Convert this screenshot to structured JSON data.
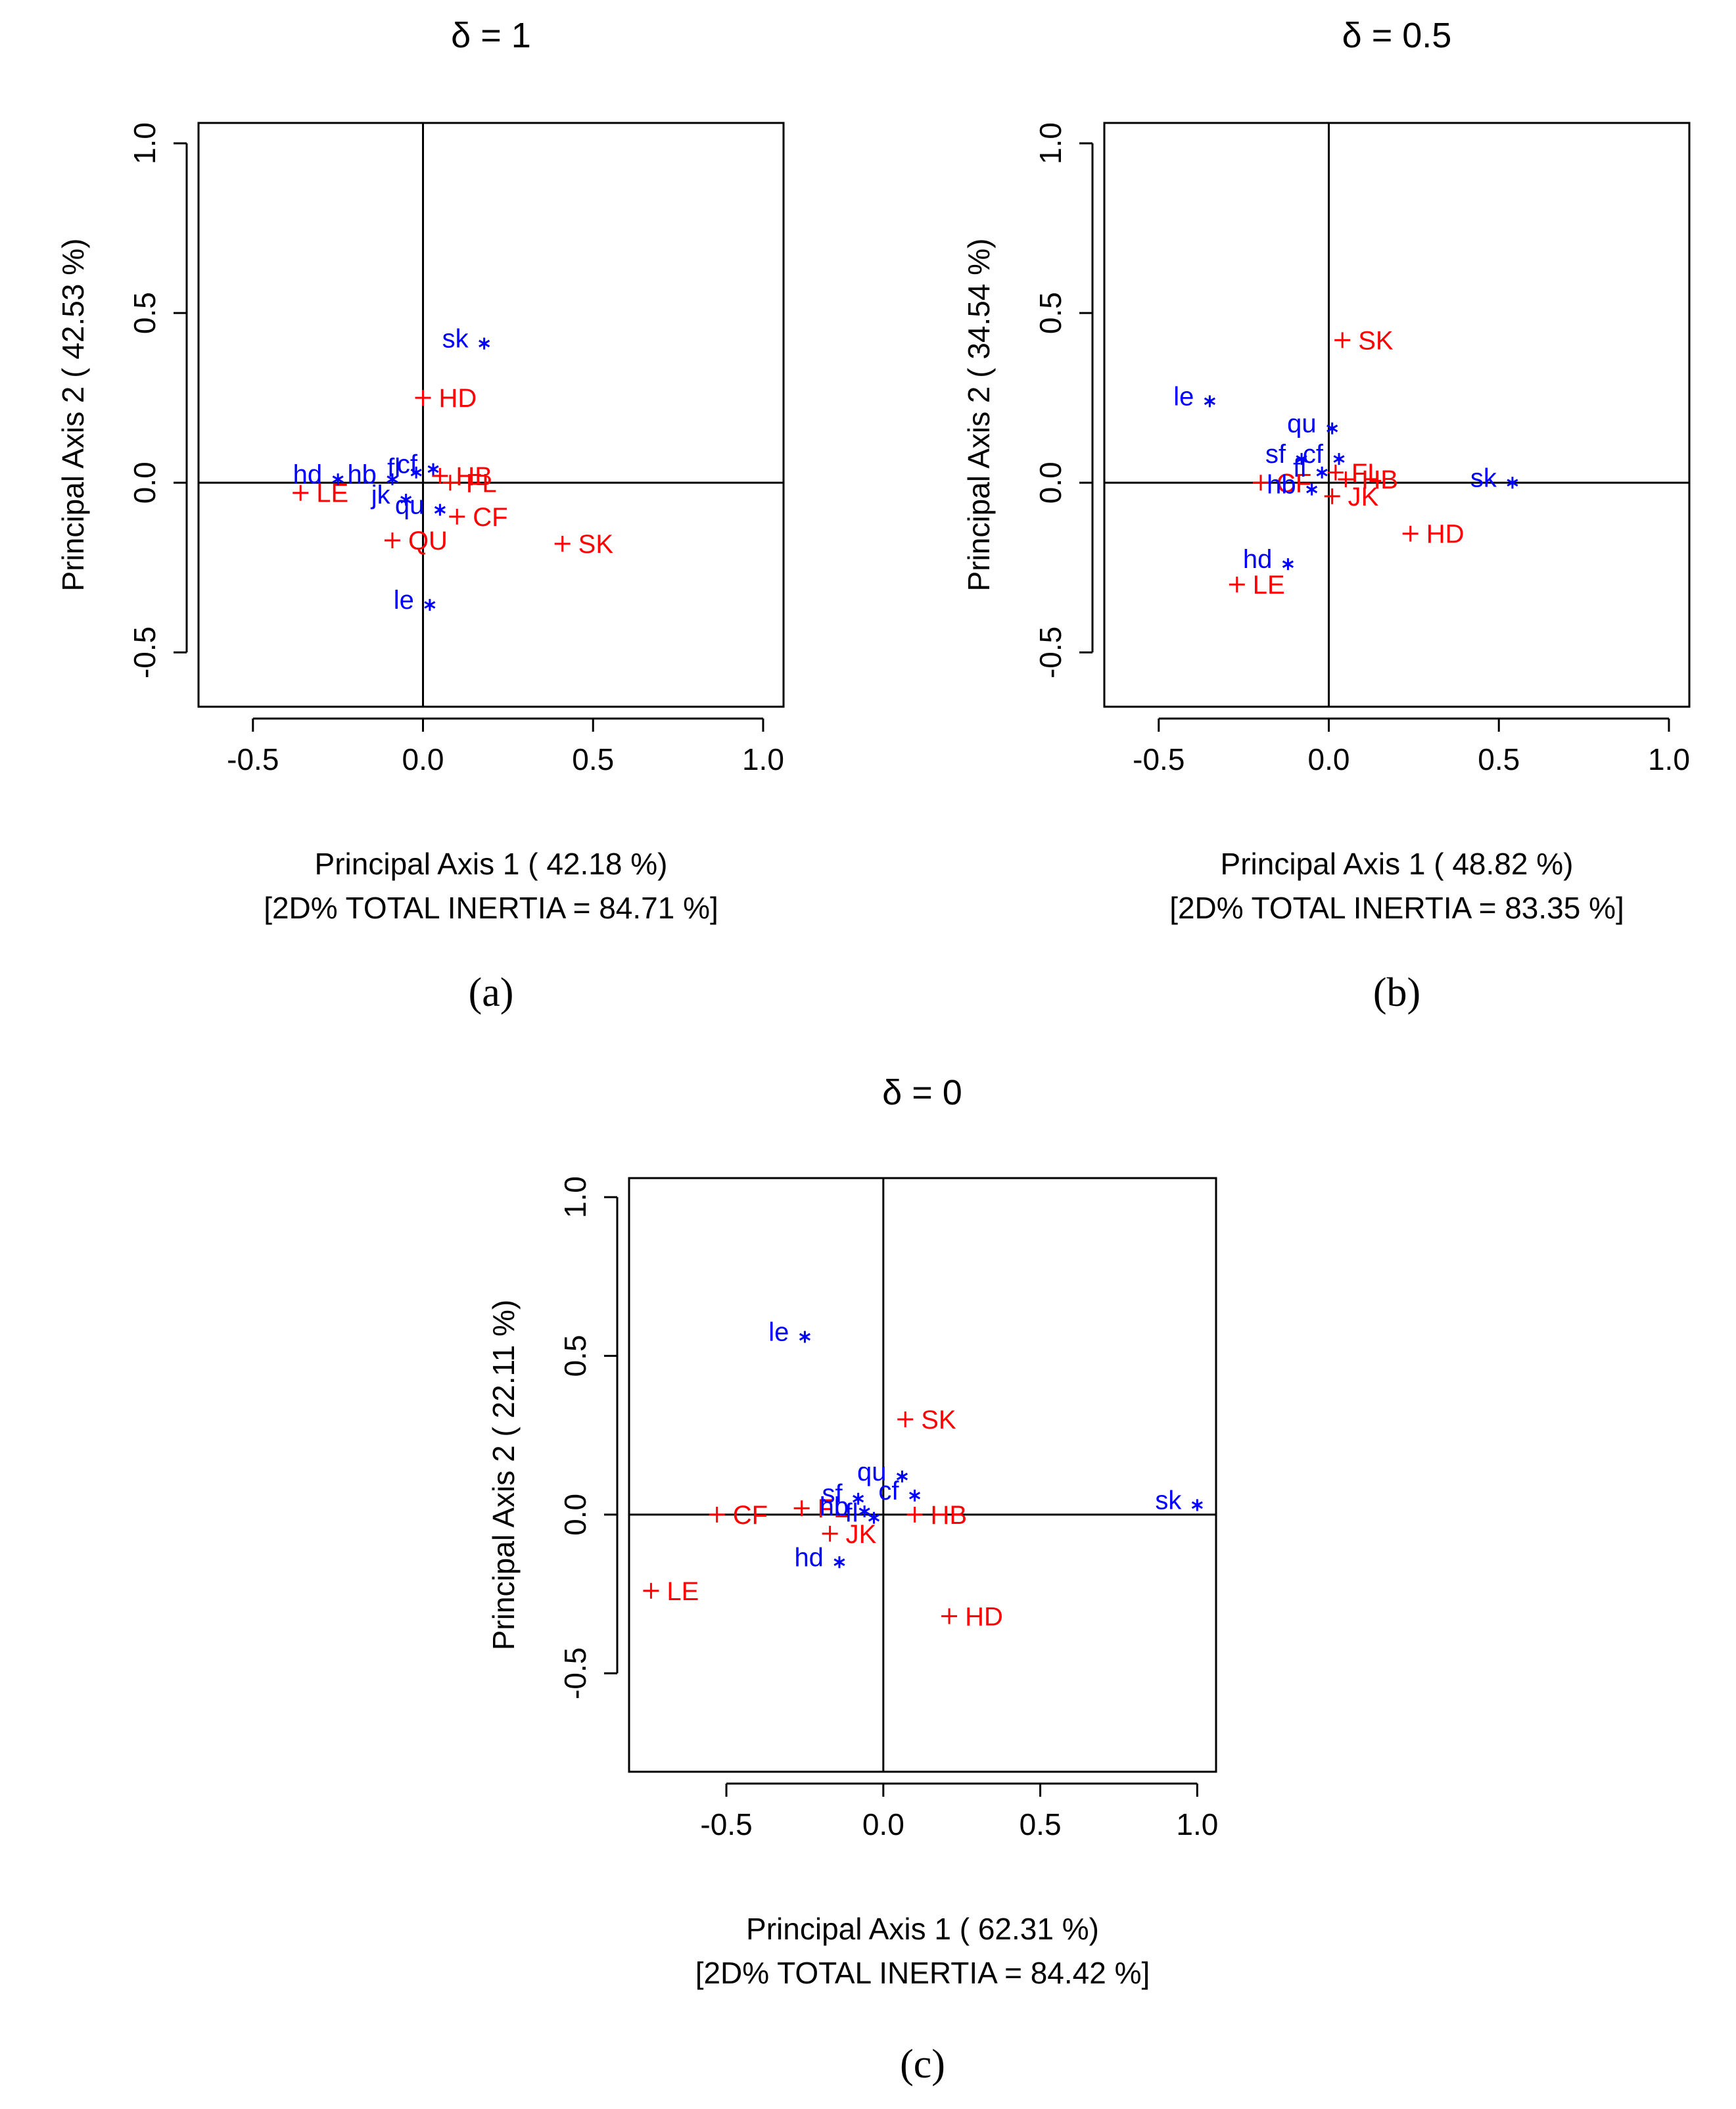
{
  "colors": {
    "rows": "#ff0000",
    "cols": "#0000ff",
    "axis": "#000000"
  },
  "chart_data": [
    {
      "type": "scatter",
      "title": "δ = 1",
      "caption": "(a)",
      "xlabel": "Principal Axis 1 ( 42.18 %)",
      "inertia_label": "[2D% TOTAL INERTIA =  84.71 %]",
      "ylabel": "Principal Axis 2 ( 42.53 %)",
      "xlim": [
        -0.66,
        1.06
      ],
      "ylim": [
        -0.66,
        1.06
      ],
      "xticks": [
        "-0.5",
        "0.0",
        "0.5",
        "1.0"
      ],
      "xtick_values": [
        -0.5,
        0,
        0.5,
        1
      ],
      "yticks": [
        "-0.5",
        "0.0",
        "0.5",
        "1.0"
      ],
      "ytick_values": [
        -0.5,
        0,
        0.5,
        1
      ],
      "series": [
        {
          "name": "rows",
          "marker": "+",
          "points": [
            {
              "label": "HD",
              "x": 0.0,
              "y": 0.25
            },
            {
              "label": "SK",
              "x": 0.41,
              "y": -0.18
            },
            {
              "label": "LE",
              "x": -0.36,
              "y": -0.03
            },
            {
              "label": "QU",
              "x": -0.09,
              "y": -0.17
            },
            {
              "label": "CF",
              "x": 0.1,
              "y": -0.1
            },
            {
              "label": "HB",
              "x": 0.05,
              "y": 0.02
            },
            {
              "label": "FL",
              "x": 0.08,
              "y": 0.0
            }
          ]
        },
        {
          "name": "columns",
          "marker": "*",
          "points": [
            {
              "label": "sk",
              "x": 0.18,
              "y": 0.41
            },
            {
              "label": "le",
              "x": 0.02,
              "y": -0.36
            },
            {
              "label": "hd",
              "x": -0.25,
              "y": 0.01
            },
            {
              "label": "hb",
              "x": -0.09,
              "y": 0.01
            },
            {
              "label": "fl",
              "x": -0.02,
              "y": 0.03
            },
            {
              "label": "cf",
              "x": 0.03,
              "y": 0.04
            },
            {
              "label": "jk",
              "x": -0.05,
              "y": -0.05
            },
            {
              "label": "qu",
              "x": 0.05,
              "y": -0.08
            }
          ]
        }
      ]
    },
    {
      "type": "scatter",
      "title": "δ = 0.5",
      "caption": "(b)",
      "xlabel": "Principal Axis 1 ( 48.82 %)",
      "inertia_label": "[2D% TOTAL INERTIA =  83.35 %]",
      "ylabel": "Principal Axis 2 ( 34.54 %)",
      "xlim": [
        -0.66,
        1.06
      ],
      "ylim": [
        -0.66,
        1.06
      ],
      "xticks": [
        "-0.5",
        "0.0",
        "0.5",
        "1.0"
      ],
      "xtick_values": [
        -0.5,
        0,
        0.5,
        1
      ],
      "yticks": [
        "-0.5",
        "0.0",
        "0.5",
        "1.0"
      ],
      "ytick_values": [
        -0.5,
        0,
        0.5,
        1
      ],
      "series": [
        {
          "name": "rows",
          "marker": "+",
          "points": [
            {
              "label": "SK",
              "x": 0.04,
              "y": 0.42
            },
            {
              "label": "HD",
              "x": 0.24,
              "y": -0.15
            },
            {
              "label": "LE",
              "x": -0.27,
              "y": -0.3
            },
            {
              "label": "HB",
              "x": 0.05,
              "y": 0.01
            },
            {
              "label": "FL",
              "x": 0.02,
              "y": 0.03
            },
            {
              "label": "JK",
              "x": 0.01,
              "y": -0.04
            },
            {
              "label": "CF",
              "x": -0.2,
              "y": 0.0
            }
          ]
        },
        {
          "name": "columns",
          "marker": "*",
          "points": [
            {
              "label": "le",
              "x": -0.35,
              "y": 0.24
            },
            {
              "label": "qu",
              "x": 0.01,
              "y": 0.16
            },
            {
              "label": "sk",
              "x": 0.54,
              "y": 0.0
            },
            {
              "label": "hd",
              "x": -0.12,
              "y": -0.24
            },
            {
              "label": "sf",
              "x": -0.08,
              "y": 0.07
            },
            {
              "label": "cf",
              "x": 0.03,
              "y": 0.07
            },
            {
              "label": "hb",
              "x": -0.05,
              "y": -0.02
            },
            {
              "label": "fl",
              "x": -0.02,
              "y": 0.03
            }
          ]
        }
      ]
    },
    {
      "type": "scatter",
      "title": "δ = 0",
      "caption": "(c)",
      "xlabel": "Principal Axis 1 ( 62.31 %)",
      "inertia_label": "[2D% TOTAL INERTIA =  84.42 %]",
      "ylabel": "Principal Axis 2 ( 22.11 %)",
      "xlim": [
        -0.81,
        1.06
      ],
      "ylim": [
        -0.81,
        1.06
      ],
      "xticks": [
        "-0.5",
        "0.0",
        "0.5",
        "1.0"
      ],
      "xtick_values": [
        -0.5,
        0,
        0.5,
        1
      ],
      "yticks": [
        "-0.5",
        "0.0",
        "0.5",
        "1.0"
      ],
      "ytick_values": [
        -0.5,
        0,
        0.5,
        1
      ],
      "series": [
        {
          "name": "rows",
          "marker": "+",
          "points": [
            {
              "label": "SK",
              "x": 0.07,
              "y": 0.3
            },
            {
              "label": "HD",
              "x": 0.21,
              "y": -0.32
            },
            {
              "label": "LE",
              "x": -0.74,
              "y": -0.24
            },
            {
              "label": "CF",
              "x": -0.53,
              "y": 0.0
            },
            {
              "label": "JK",
              "x": -0.17,
              "y": -0.06
            },
            {
              "label": "HB",
              "x": 0.1,
              "y": 0.0
            },
            {
              "label": "FL",
              "x": -0.26,
              "y": 0.02
            }
          ]
        },
        {
          "name": "columns",
          "marker": "*",
          "points": [
            {
              "label": "le",
              "x": -0.25,
              "y": 0.56
            },
            {
              "label": "sk",
              "x": 1.0,
              "y": 0.03
            },
            {
              "label": "hd",
              "x": -0.14,
              "y": -0.15
            },
            {
              "label": "qu",
              "x": 0.06,
              "y": 0.12
            },
            {
              "label": "sf",
              "x": -0.08,
              "y": 0.05
            },
            {
              "label": "cf",
              "x": 0.1,
              "y": 0.06
            },
            {
              "label": "hb",
              "x": -0.06,
              "y": 0.01
            },
            {
              "label": "fl",
              "x": -0.03,
              "y": -0.01
            }
          ]
        }
      ]
    }
  ]
}
